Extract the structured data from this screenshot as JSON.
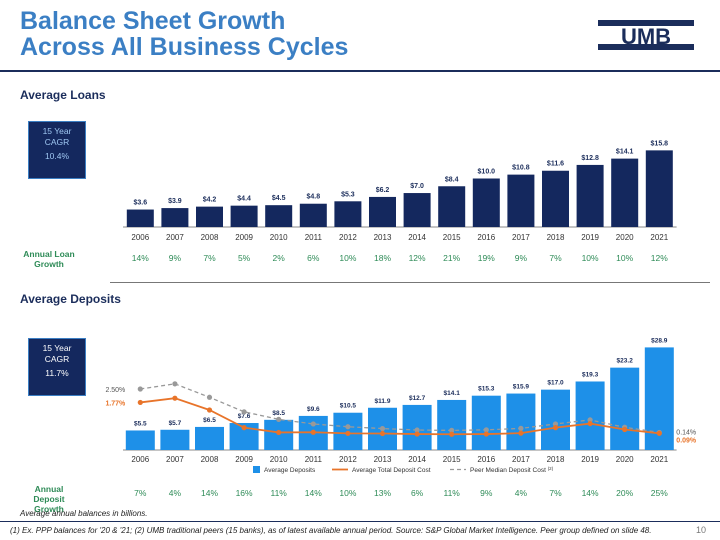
{
  "header": {
    "title_line1": "Balance Sheet Growth",
    "title_line2": "Across All Business Cycles",
    "logo_text": "UMB"
  },
  "loans_section": {
    "title": "Average Loans",
    "cagr_line1": "15 Year",
    "cagr_line2": "CAGR",
    "cagr_value": "10.4%",
    "growth_label": "Annual Loan Growth",
    "growth": [
      "14%",
      "9%",
      "7%",
      "5%",
      "2%",
      "6%",
      "10%",
      "18%",
      "12%",
      "21%",
      "19%",
      "9%",
      "7%",
      "10%",
      "10%",
      "12%"
    ]
  },
  "deposits_section": {
    "title": "Average Deposits",
    "cagr_line1": "15 Year",
    "cagr_line2": "CAGR",
    "cagr_value": "11.7%",
    "growth_label": "Annual Deposit Growth",
    "growth": [
      "7%",
      "4%",
      "14%",
      "16%",
      "11%",
      "14%",
      "10%",
      "13%",
      "6%",
      "11%",
      "9%",
      "4%",
      "7%",
      "14%",
      "20%",
      "25%"
    ]
  },
  "chart_data": [
    {
      "type": "bar",
      "title": "Average Loans",
      "categories": [
        "2006",
        "2007",
        "2008",
        "2009",
        "2010",
        "2011",
        "2012",
        "2013",
        "2014",
        "2015",
        "2016",
        "2017",
        "2018",
        "2019",
        "2020",
        "2021"
      ],
      "values": [
        3.6,
        3.9,
        4.2,
        4.4,
        4.5,
        4.8,
        5.3,
        6.2,
        7.0,
        8.4,
        10.0,
        10.8,
        11.6,
        12.8,
        14.1,
        15.8
      ],
      "labels": [
        "$3.6",
        "$3.9",
        "$4.2",
        "$4.4",
        "$4.5",
        "$4.8",
        "$5.3",
        "$6.2",
        "$7.0",
        "$8.4",
        "$10.0",
        "$10.8",
        "$11.6",
        "$12.8",
        "$14.1",
        "$15.8"
      ],
      "bar_color": "#14285e"
    },
    {
      "type": "bar",
      "title": "Average Deposits",
      "categories": [
        "2006",
        "2007",
        "2008",
        "2009",
        "2010",
        "2011",
        "2012",
        "2013",
        "2014",
        "2015",
        "2016",
        "2017",
        "2018",
        "2019",
        "2020",
        "2021"
      ],
      "series": [
        {
          "name": "Average Deposits",
          "kind": "bar",
          "color": "#1e90e8",
          "values": [
            5.5,
            5.7,
            6.5,
            7.6,
            8.5,
            9.6,
            10.5,
            11.9,
            12.7,
            14.1,
            15.3,
            15.9,
            17.0,
            19.3,
            23.2,
            28.9
          ],
          "labels": [
            "$5.5",
            "$5.7",
            "$6.5",
            "$7.6",
            "$8.5",
            "$9.6",
            "$10.5",
            "$11.9",
            "$12.7",
            "$14.1",
            "$15.3",
            "$15.9",
            "$17.0",
            "$19.3",
            "$23.2",
            "$28.9"
          ]
        },
        {
          "name": "Average Total Deposit Cost",
          "kind": "line",
          "color": "#e8742a",
          "values": [
            1.77,
            2.0,
            1.36,
            0.4,
            0.14,
            0.15,
            0.09,
            0.08,
            0.05,
            0.04,
            0.05,
            0.1,
            0.4,
            0.62,
            0.3,
            0.09
          ],
          "labels": {
            "first": "1.77%",
            "last": "0.09%"
          }
        },
        {
          "name": "Peer Median Deposit Cost",
          "superscript": "(2)",
          "kind": "line",
          "style": "dashed",
          "color": "#999999",
          "values": [
            2.5,
            2.78,
            2.05,
            1.26,
            0.85,
            0.6,
            0.45,
            0.35,
            0.27,
            0.25,
            0.28,
            0.36,
            0.6,
            0.82,
            0.42,
            0.14
          ],
          "labels": {
            "first": "2.50%",
            "last": "0.14%"
          }
        }
      ]
    }
  ],
  "footer": {
    "note": "Average annual balances in billions.",
    "source": "(1) Ex. PPP balances for '20 & '21; (2) UMB traditional peers (15 banks), as of latest available annual period. Source: S&P Global Market Intelligence. Peer group defined on slide 48.",
    "page_number": "10"
  }
}
